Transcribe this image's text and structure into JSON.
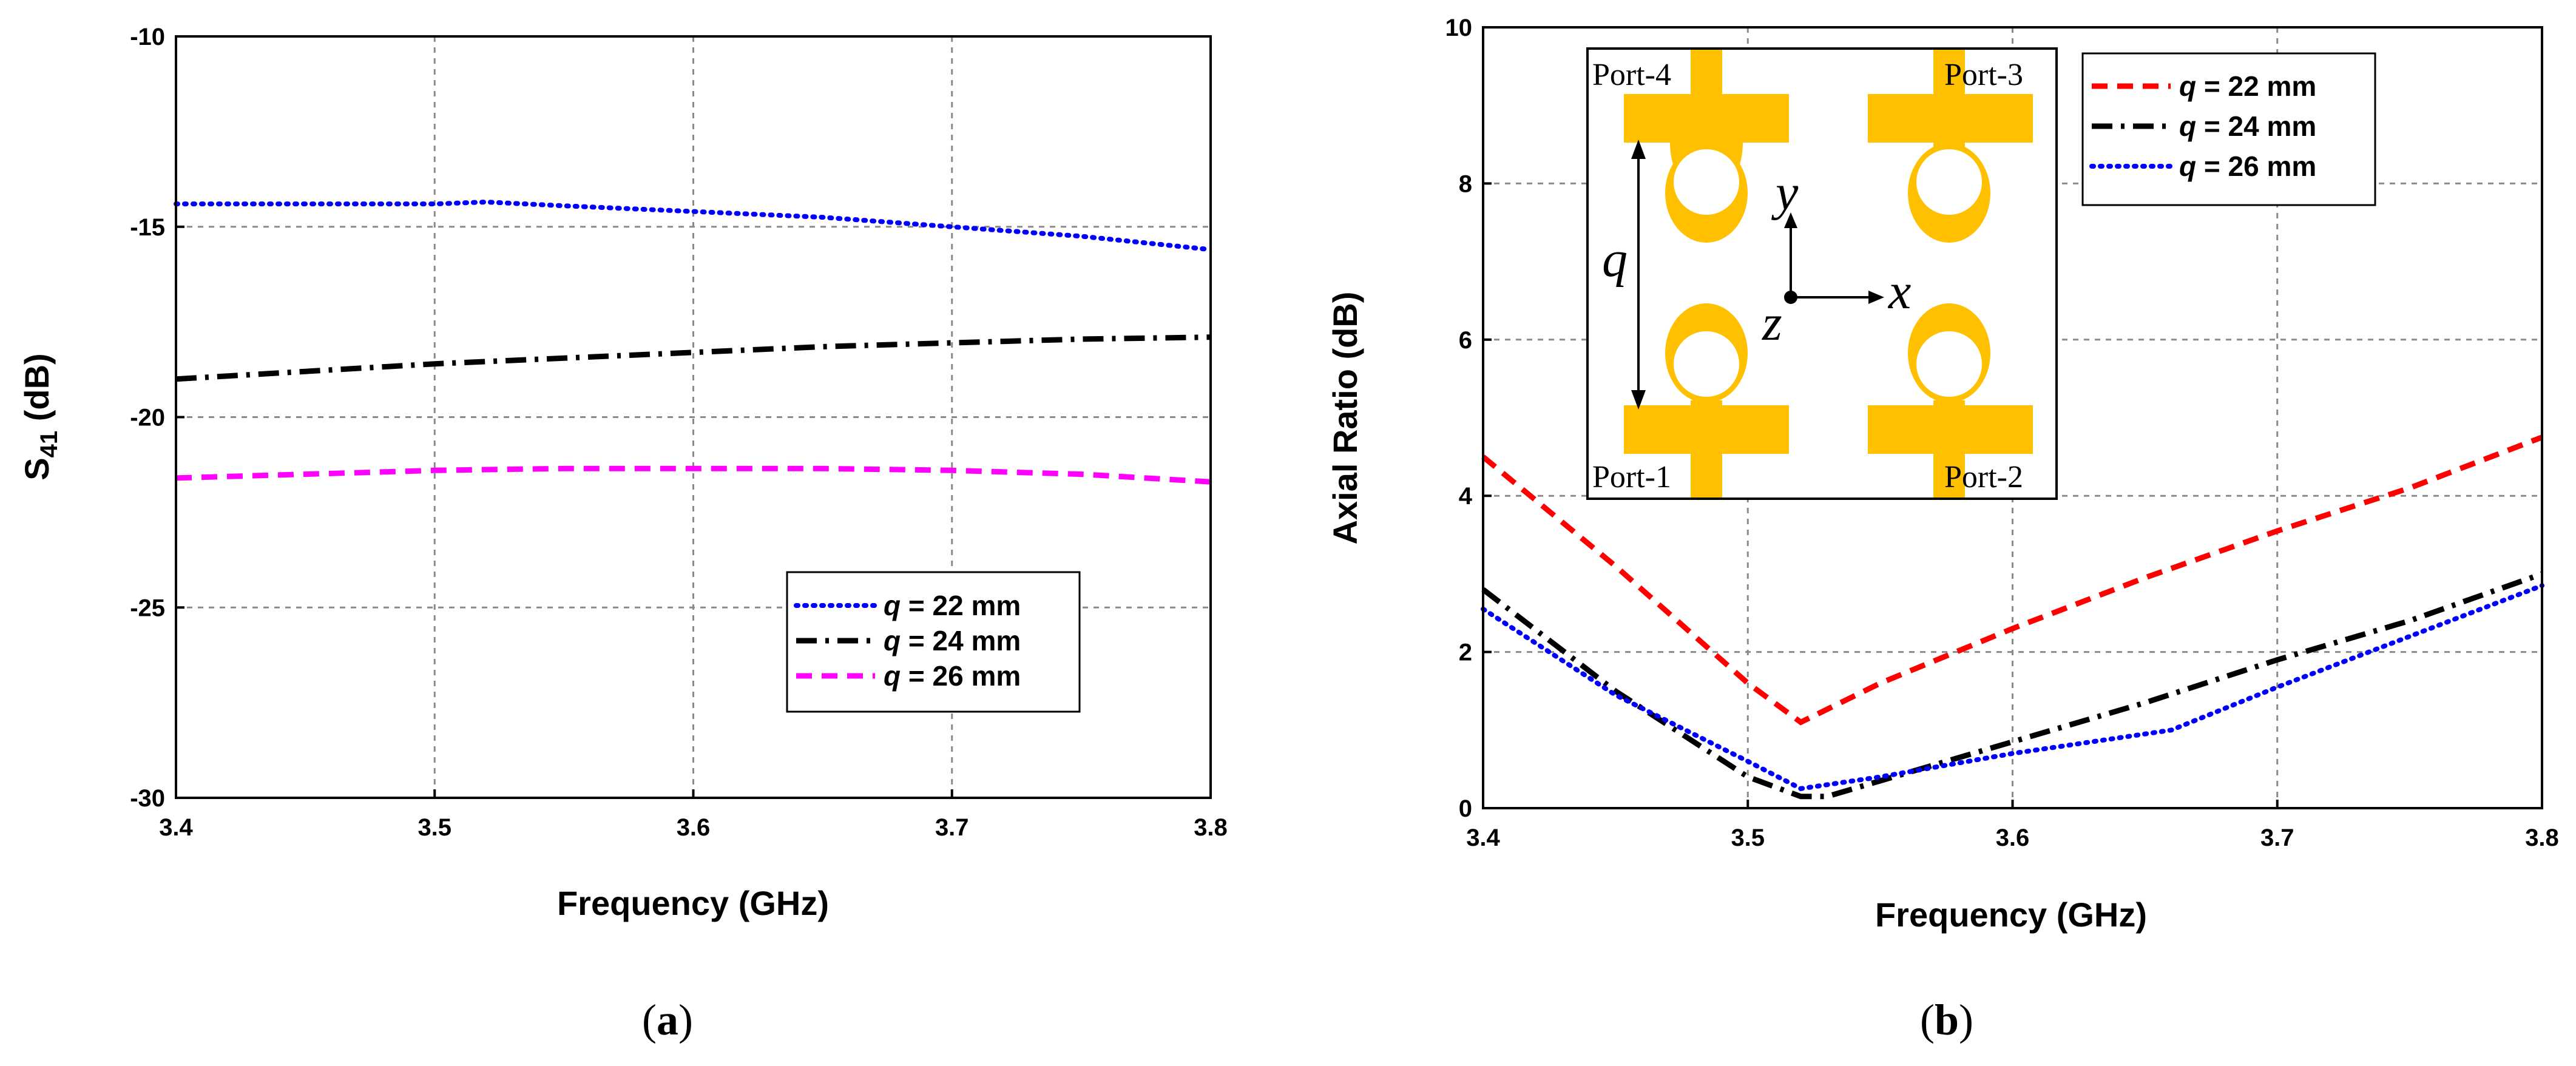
{
  "chart_data": [
    {
      "type": "line",
      "panel_label": "a",
      "title": "",
      "xlabel": "Frequency (GHz)",
      "ylabel_main": "S",
      "ylabel_sub": "41",
      "ylabel_tail": " (dB)",
      "xlim": [
        3.4,
        3.8
      ],
      "ylim": [
        -30,
        -10
      ],
      "xticks": [
        "3.4",
        "3.5",
        "3.6",
        "3.7",
        "3.8"
      ],
      "yticks": [
        "-10",
        "-15",
        "-20",
        "-25",
        "-30"
      ],
      "legend_position": "lower-right",
      "series": [
        {
          "q_label": "q",
          "name_tail": " = 22 mm",
          "color": "#0000ff",
          "style": "dotted",
          "x": [
            3.4,
            3.45,
            3.5,
            3.52,
            3.55,
            3.6,
            3.65,
            3.7,
            3.75,
            3.8
          ],
          "y": [
            -14.4,
            -14.4,
            -14.4,
            -14.35,
            -14.45,
            -14.6,
            -14.75,
            -15.0,
            -15.25,
            -15.6
          ]
        },
        {
          "q_label": "q",
          "name_tail": " = 24 mm",
          "color": "#000000",
          "style": "dashdot",
          "x": [
            3.4,
            3.45,
            3.5,
            3.55,
            3.6,
            3.65,
            3.7,
            3.75,
            3.8
          ],
          "y": [
            -19.0,
            -18.8,
            -18.6,
            -18.45,
            -18.3,
            -18.15,
            -18.05,
            -17.95,
            -17.9
          ]
        },
        {
          "q_label": "q",
          "name_tail": " = 26 mm",
          "color": "#ff00ff",
          "style": "dashed",
          "x": [
            3.4,
            3.45,
            3.5,
            3.55,
            3.6,
            3.65,
            3.7,
            3.75,
            3.8
          ],
          "y": [
            -21.6,
            -21.5,
            -21.4,
            -21.35,
            -21.35,
            -21.35,
            -21.4,
            -21.5,
            -21.7
          ]
        }
      ]
    },
    {
      "type": "line",
      "panel_label": "b",
      "title": "",
      "xlabel": "Frequency (GHz)",
      "ylabel": "Axial Ratio (dB)",
      "xlim": [
        3.4,
        3.8
      ],
      "ylim": [
        0,
        10
      ],
      "xticks": [
        "3.4",
        "3.5",
        "3.6",
        "3.7",
        "3.8"
      ],
      "yticks": [
        "0",
        "2",
        "4",
        "6",
        "8",
        "10"
      ],
      "legend_position": "top-right",
      "series": [
        {
          "q_label": "q",
          "name_tail": " = 22 mm",
          "color": "#ff0000",
          "style": "dashed",
          "x": [
            3.4,
            3.45,
            3.5,
            3.52,
            3.55,
            3.6,
            3.65,
            3.7,
            3.75,
            3.8
          ],
          "y": [
            4.5,
            3.1,
            1.6,
            1.1,
            1.6,
            2.3,
            2.95,
            3.55,
            4.1,
            4.75
          ]
        },
        {
          "q_label": "q",
          "name_tail": " = 24 mm",
          "color": "#000000",
          "style": "dashdot",
          "x": [
            3.4,
            3.45,
            3.5,
            3.52,
            3.53,
            3.55,
            3.6,
            3.65,
            3.7,
            3.75,
            3.8
          ],
          "y": [
            2.8,
            1.5,
            0.4,
            0.15,
            0.15,
            0.35,
            0.85,
            1.35,
            1.9,
            2.4,
            3.0
          ]
        },
        {
          "q_label": "q",
          "name_tail": " = 26 mm",
          "color": "#0000ff",
          "style": "dotted",
          "x": [
            3.4,
            3.45,
            3.5,
            3.52,
            3.55,
            3.6,
            3.66,
            3.7,
            3.75,
            3.8
          ],
          "y": [
            2.55,
            1.45,
            0.6,
            0.25,
            0.4,
            0.7,
            1.0,
            1.55,
            2.2,
            2.85
          ]
        }
      ],
      "inset": {
        "port_labels": [
          "Port-4",
          "Port-3",
          "Port-1",
          "Port-2"
        ],
        "dimension_label": "q",
        "axis_labels": {
          "x": "x",
          "y": "y",
          "z": "z"
        },
        "antenna_color": "#ffc000"
      }
    }
  ]
}
